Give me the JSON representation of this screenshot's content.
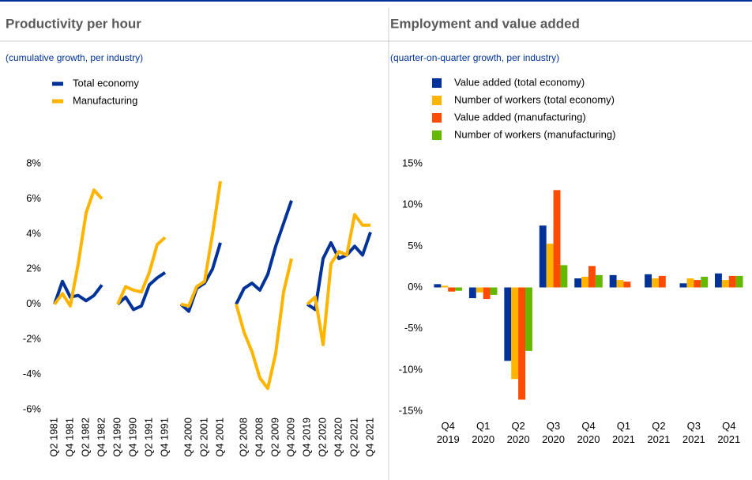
{
  "chart_data": [
    {
      "type": "line",
      "title": "Productivity per hour",
      "subtitle": "(cumulative growth, per industry)",
      "categories": [
        "Q2 1981",
        null,
        "Q4 1981",
        null,
        "Q2 1982",
        null,
        "Q4 1982",
        null,
        "Q2 1990",
        null,
        "Q4 1990",
        null,
        "Q2 1991",
        null,
        "Q4 1991",
        null,
        null,
        "Q4 2000",
        null,
        "Q2 2001",
        null,
        "Q4 2001",
        null,
        null,
        "Q2 2008",
        null,
        "Q4 2008",
        null,
        "Q2 2009",
        null,
        "Q4 2009",
        null,
        "Q4 2019",
        null,
        "Q2 2020",
        null,
        "Q4 2020",
        null,
        "Q2 2021",
        null,
        "Q4 2021"
      ],
      "series": [
        {
          "name": "Total economy",
          "color": "#003299",
          "values": [
            0,
            1.3,
            0.4,
            0.5,
            0.2,
            0.5,
            1.1,
            null,
            0,
            0.4,
            -0.3,
            -0.1,
            1.1,
            1.5,
            1.8,
            null,
            0,
            -0.4,
            0.9,
            1.2,
            2.0,
            3.5,
            null,
            0,
            0.9,
            1.2,
            0.8,
            1.7,
            3.3,
            4.6,
            5.9,
            null,
            0,
            -0.3,
            2.6,
            3.5,
            2.6,
            2.8,
            3.3,
            2.8,
            4.1
          ]
        },
        {
          "name": "Manufacturing",
          "color": "#ffb400",
          "values": [
            0,
            0.6,
            -0.1,
            2.3,
            5.2,
            6.5,
            6.0,
            null,
            0,
            1.0,
            0.8,
            0.7,
            1.8,
            3.4,
            3.8,
            null,
            0,
            -0.1,
            1.0,
            1.3,
            4.0,
            7.0,
            null,
            0,
            -1.6,
            -2.7,
            -4.2,
            -4.8,
            -2.8,
            0.7,
            2.6,
            null,
            0,
            0.4,
            -2.3,
            2.3,
            3.0,
            2.8,
            5.1,
            4.5,
            4.5
          ]
        }
      ],
      "ylim": [
        -6,
        8
      ],
      "yticks": [
        {
          "value": -6,
          "label": "-6%"
        },
        {
          "value": -4,
          "label": "-4%"
        },
        {
          "value": -2,
          "label": "-2%"
        },
        {
          "value": 0,
          "label": "0%"
        },
        {
          "value": 2,
          "label": "2%"
        },
        {
          "value": 4,
          "label": "4%"
        },
        {
          "value": 6,
          "label": "6%"
        },
        {
          "value": 8,
          "label": "8%"
        }
      ],
      "grid": false
    },
    {
      "type": "bar",
      "title": "Employment and value added",
      "subtitle": "(quarter-on-quarter growth, per industry)",
      "categories": [
        "Q4 2019",
        "Q1 2020",
        "Q2 2020",
        "Q3 2020",
        "Q4 2020",
        "Q1 2021",
        "Q2 2021",
        "Q3 2021",
        "Q4 2021"
      ],
      "series": [
        {
          "name": "Value added (total economy)",
          "color": "#003299",
          "values": [
            0.4,
            -1.3,
            -8.9,
            7.5,
            1.1,
            1.5,
            1.6,
            0.5,
            1.7
          ]
        },
        {
          "name": "Number of workers (total economy)",
          "color": "#ffb400",
          "values": [
            0.2,
            -0.6,
            -11.1,
            5.3,
            1.3,
            0.9,
            1.1,
            1.1,
            0.9
          ]
        },
        {
          "name": "Value added (manufacturing)",
          "color": "#ff4b00",
          "values": [
            -0.5,
            -1.4,
            -13.6,
            11.8,
            2.6,
            0.7,
            1.4,
            0.9,
            1.4
          ]
        },
        {
          "name": "Number of workers (manufacturing)",
          "color": "#65b800",
          "values": [
            -0.4,
            -0.9,
            -7.7,
            2.7,
            1.5,
            null,
            null,
            1.3,
            1.4
          ]
        }
      ],
      "ylim": [
        -15,
        15
      ],
      "yticks": [
        {
          "value": -15,
          "label": "-15%"
        },
        {
          "value": -10,
          "label": "-10%"
        },
        {
          "value": -5,
          "label": "-5%"
        },
        {
          "value": 0,
          "label": "0%"
        },
        {
          "value": 5,
          "label": "5%"
        },
        {
          "value": 10,
          "label": "10%"
        },
        {
          "value": 15,
          "label": "15%"
        }
      ],
      "grid": false
    }
  ]
}
